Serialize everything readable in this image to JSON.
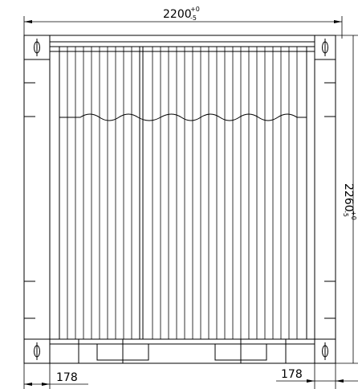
{
  "dimensions": {
    "width": {
      "value": "2200",
      "tol_upper": "+0",
      "tol_lower": "-5"
    },
    "height": {
      "value": "2260",
      "tol_upper": "+0",
      "tol_lower": "-5"
    },
    "corner_left": "178",
    "corner_right": "178"
  },
  "corrugations": 22,
  "locking_rods": 2
}
